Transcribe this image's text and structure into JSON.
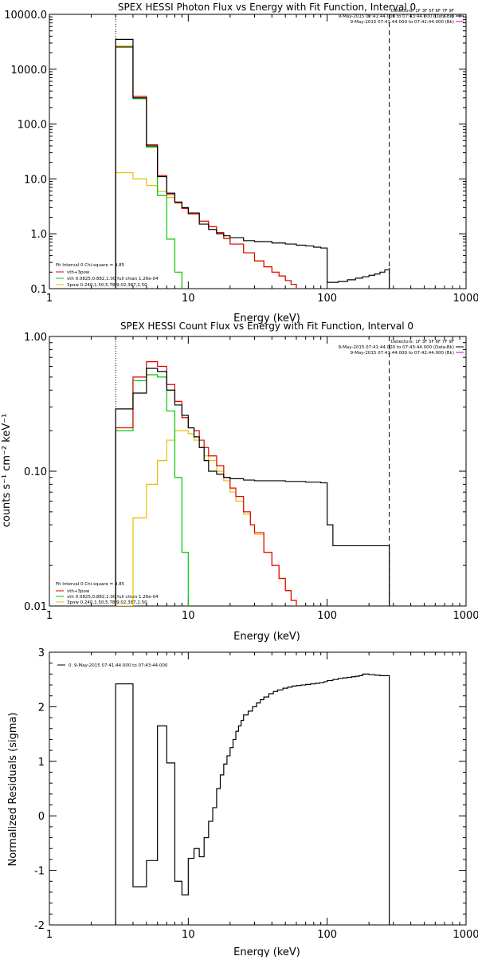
{
  "chart_data": [
    {
      "type": "line",
      "title": "SPEX HESSI Photon Flux vs Energy with Fit Function, Interval 0",
      "xlabel": "Energy (keV)",
      "ylabel": "",
      "xscale": "log",
      "yscale": "log",
      "xlim": [
        1,
        1000
      ],
      "ylim": [
        0.1,
        10000
      ],
      "xtick_labels": [
        "1",
        "10",
        "100",
        "1000"
      ],
      "ytick_labels": [
        "0.1",
        "1.0",
        "10.0",
        "100.0",
        "1000.0",
        "10000.0"
      ],
      "vlines": [
        {
          "x": 3,
          "style": "dotted"
        },
        {
          "x": 280,
          "style": "dashed"
        }
      ],
      "legend_right": [
        "Detectors: 1F 3F 5F 6F 7F 9F",
        "9-May-2015 07:41:44.000 to 07:43:44.000 (Data-Bk)",
        "9-May-2015 07:41:44.000 to 07:42:44.000 (Bk)"
      ],
      "legend_left": [
        "Fit Interval 0   Chi-square = 4.85",
        "vth+3pow",
        "vth 0.0825,0.882,1.00  full chian 1.26e-04",
        "3pow 0.240,1.50,5.78,9.02,387,2.50"
      ],
      "series": [
        {
          "name": "Data-Bk",
          "color": "#000000",
          "x": [
            3,
            4,
            5,
            6,
            7,
            8,
            9,
            10,
            12,
            14,
            16,
            18,
            20,
            25,
            30,
            40,
            50,
            60,
            70,
            80,
            90,
            100,
            110,
            120,
            140,
            160,
            180,
            200,
            220,
            240,
            260,
            280
          ],
          "y": [
            3500,
            300,
            40,
            11,
            5.5,
            3.8,
            3.0,
            2.4,
            1.5,
            1.2,
            1.0,
            0.92,
            0.85,
            0.75,
            0.72,
            0.68,
            0.65,
            0.62,
            0.6,
            0.57,
            0.55,
            0.13,
            0.13,
            0.135,
            0.145,
            0.155,
            0.165,
            0.175,
            0.185,
            0.2,
            0.22,
            0.24
          ]
        },
        {
          "name": "vth+3pow",
          "color": "#e00000",
          "x": [
            3,
            4,
            5,
            6,
            7,
            8,
            9,
            10,
            12,
            14,
            16,
            18,
            20,
            25,
            30,
            35,
            40,
            45,
            50,
            55,
            60
          ],
          "y": [
            2600,
            320,
            42,
            11.5,
            5.2,
            3.7,
            2.9,
            2.3,
            1.7,
            1.35,
            1.05,
            0.82,
            0.65,
            0.45,
            0.32,
            0.25,
            0.2,
            0.17,
            0.14,
            0.12,
            0.1
          ]
        },
        {
          "name": "vth",
          "color": "#00c800",
          "x": [
            3,
            4,
            5,
            6,
            7,
            8,
            9
          ],
          "y": [
            2500,
            290,
            38,
            5.0,
            0.8,
            0.2,
            0.1
          ]
        },
        {
          "name": "3pow",
          "color": "#e6c000",
          "x": [
            3,
            4,
            5,
            6,
            7,
            8,
            9,
            10,
            12,
            14,
            16,
            18,
            20,
            25,
            30,
            35,
            40,
            45,
            50,
            55,
            60
          ],
          "y": [
            13,
            10,
            7.6,
            5.9,
            4.6,
            3.6,
            2.9,
            2.3,
            1.7,
            1.35,
            1.05,
            0.82,
            0.65,
            0.45,
            0.32,
            0.25,
            0.2,
            0.17,
            0.14,
            0.12,
            0.1
          ]
        }
      ]
    },
    {
      "type": "line",
      "title": "SPEX HESSI Count Flux vs Energy with Fit Function, Interval 0",
      "xlabel": "Energy (keV)",
      "ylabel": "counts s⁻¹ cm⁻² keV⁻¹",
      "xscale": "log",
      "yscale": "log",
      "xlim": [
        1,
        1000
      ],
      "ylim": [
        0.01,
        1.0
      ],
      "xtick_labels": [
        "1",
        "10",
        "100",
        "1000"
      ],
      "ytick_labels": [
        "0.01",
        "0.10",
        "1.00"
      ],
      "vlines": [
        {
          "x": 3,
          "style": "dotted"
        },
        {
          "x": 280,
          "style": "dashed"
        }
      ],
      "legend_right": [
        "Detectors: 1F 3F 5F 6F 7F 9F",
        "9-May-2015 07:41:44.000 to 07:43:44.000 (Data-Bk)",
        "9-May-2015 07:41:44.000 to 07:42:44.000 (Bk)"
      ],
      "legend_left": [
        "Fit Interval 0   Chi-square = 4.85",
        "vth+3pow",
        "vth 0.0825,0.882,1.00  full chian 1.26e-04",
        "3pow 0.240,1.50,5.78,9.02,387,2.50"
      ],
      "series": [
        {
          "name": "Data-Bk",
          "color": "#000000",
          "x": [
            3,
            4,
            5,
            6,
            7,
            8,
            9,
            10,
            11,
            12,
            13,
            14,
            16,
            18,
            20,
            25,
            30,
            40,
            50,
            60,
            70,
            80,
            90,
            100,
            110,
            120,
            140,
            160,
            180,
            200,
            220,
            240,
            260,
            280
          ],
          "y": [
            0.29,
            0.38,
            0.58,
            0.55,
            0.4,
            0.31,
            0.26,
            0.21,
            0.18,
            0.15,
            0.12,
            0.1,
            0.095,
            0.09,
            0.088,
            0.086,
            0.085,
            0.085,
            0.084,
            0.084,
            0.083,
            0.083,
            0.082,
            0.04,
            0.028,
            0.028,
            0.028,
            0.028,
            0.028,
            0.028,
            0.028,
            0.028,
            0.028,
            0.028
          ]
        },
        {
          "name": "vth+3pow",
          "color": "#e00000",
          "x": [
            3,
            4,
            5,
            6,
            7,
            8,
            9,
            10,
            11,
            12,
            13,
            14,
            16,
            18,
            20,
            22,
            25,
            28,
            30,
            35,
            40,
            45,
            50,
            55,
            60
          ],
          "y": [
            0.21,
            0.5,
            0.65,
            0.6,
            0.44,
            0.33,
            0.25,
            0.21,
            0.2,
            0.17,
            0.15,
            0.13,
            0.11,
            0.09,
            0.075,
            0.065,
            0.05,
            0.04,
            0.035,
            0.025,
            0.02,
            0.016,
            0.013,
            0.011,
            0.01
          ]
        },
        {
          "name": "vth",
          "color": "#00c800",
          "x": [
            3,
            4,
            5,
            6,
            7,
            8,
            9,
            10
          ],
          "y": [
            0.2,
            0.47,
            0.52,
            0.5,
            0.28,
            0.09,
            0.025,
            0.01
          ]
        },
        {
          "name": "3pow",
          "color": "#e6c000",
          "x": [
            3,
            4,
            5,
            6,
            7,
            8,
            9,
            10,
            11,
            12,
            13,
            14,
            16,
            18,
            20,
            22,
            25,
            28,
            30,
            35,
            40,
            45,
            50,
            55,
            60
          ],
          "y": [
            0.01,
            0.045,
            0.08,
            0.12,
            0.17,
            0.2,
            0.2,
            0.19,
            0.17,
            0.15,
            0.13,
            0.12,
            0.1,
            0.085,
            0.07,
            0.06,
            0.048,
            0.04,
            0.034,
            0.025,
            0.02,
            0.016,
            0.013,
            0.011,
            0.01
          ]
        }
      ]
    },
    {
      "type": "line",
      "title": "",
      "xlabel": "Energy (keV)",
      "ylabel": "Normalized Residuals (sigma)",
      "xscale": "log",
      "yscale": "linear",
      "xlim": [
        1,
        1000
      ],
      "ylim": [
        -2,
        3
      ],
      "xtick_labels": [
        "1",
        "10",
        "100",
        "1000"
      ],
      "ytick_labels": [
        "-2",
        "-1",
        "0",
        "1",
        "2",
        "3"
      ],
      "legend_right": [],
      "legend_left": [
        "0.  9-May-2015 07:41:44.000 to 07:43:44.000"
      ],
      "series": [
        {
          "name": "0.",
          "color": "#000000",
          "x": [
            3,
            4,
            5,
            6,
            7,
            8,
            9,
            10,
            11,
            12,
            13,
            14,
            15,
            16,
            17,
            18,
            19,
            20,
            21,
            22,
            23,
            24,
            25,
            27,
            29,
            31,
            33,
            35,
            38,
            41,
            44,
            48,
            52,
            56,
            60,
            65,
            70,
            76,
            82,
            88,
            95,
            100,
            110,
            120,
            130,
            140,
            150,
            160,
            170,
            180,
            200,
            220,
            240,
            260,
            280
          ],
          "y": [
            2.42,
            -1.3,
            -0.82,
            1.65,
            0.97,
            -1.2,
            -1.45,
            -0.78,
            -0.6,
            -0.75,
            -0.4,
            -0.1,
            0.15,
            0.5,
            0.75,
            0.95,
            1.1,
            1.25,
            1.4,
            1.55,
            1.65,
            1.75,
            1.85,
            1.92,
            2.0,
            2.07,
            2.13,
            2.18,
            2.24,
            2.28,
            2.31,
            2.34,
            2.36,
            2.38,
            2.39,
            2.4,
            2.41,
            2.42,
            2.43,
            2.44,
            2.46,
            2.48,
            2.5,
            2.52,
            2.53,
            2.54,
            2.55,
            2.56,
            2.57,
            2.6,
            2.59,
            2.58,
            2.57,
            2.57,
            2.56
          ]
        }
      ]
    }
  ]
}
